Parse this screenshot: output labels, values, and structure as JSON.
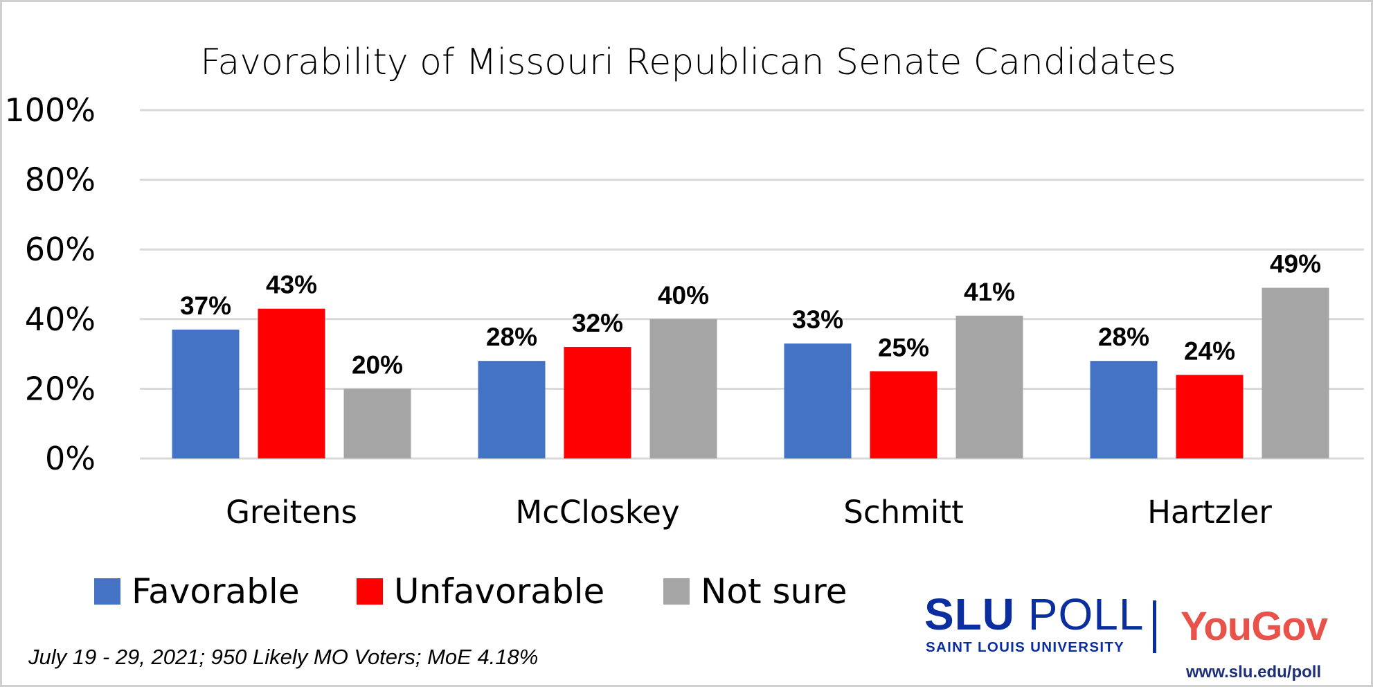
{
  "chart_data": {
    "type": "bar",
    "title": "Favorability of Missouri Republican Senate Candidates",
    "categories": [
      "Greitens",
      "McCloskey",
      "Schmitt",
      "Hartzler"
    ],
    "series": [
      {
        "name": "Favorable",
        "color": "#4472C4",
        "values": [
          37,
          28,
          33,
          28
        ],
        "labels": [
          "37%",
          "28%",
          "33%",
          "28%"
        ]
      },
      {
        "name": "Unfavorable",
        "color": "#FF0000",
        "values": [
          43,
          32,
          25,
          24
        ],
        "labels": [
          "43%",
          "32%",
          "25%",
          "24%"
        ]
      },
      {
        "name": "Not sure",
        "color": "#A5A5A5",
        "values": [
          20,
          40,
          41,
          49
        ],
        "labels": [
          "20%",
          "40%",
          "41%",
          "49%"
        ]
      }
    ],
    "ylim": [
      0,
      100
    ],
    "yticks": [
      "0%",
      "20%",
      "40%",
      "60%",
      "80%",
      "100%"
    ],
    "grid": true,
    "legend": "bottom-left",
    "xlabel": "",
    "ylabel": ""
  },
  "footnote": "July 19 - 29, 2021; 950 Likely MO Voters; MoE 4.18%",
  "logo": {
    "slu_bold": "SLU",
    "slu_light": "POLL",
    "slu_sub": "SAINT LOUIS UNIVERSITY",
    "partner": "YouGov",
    "url": "www.slu.edu/poll"
  }
}
